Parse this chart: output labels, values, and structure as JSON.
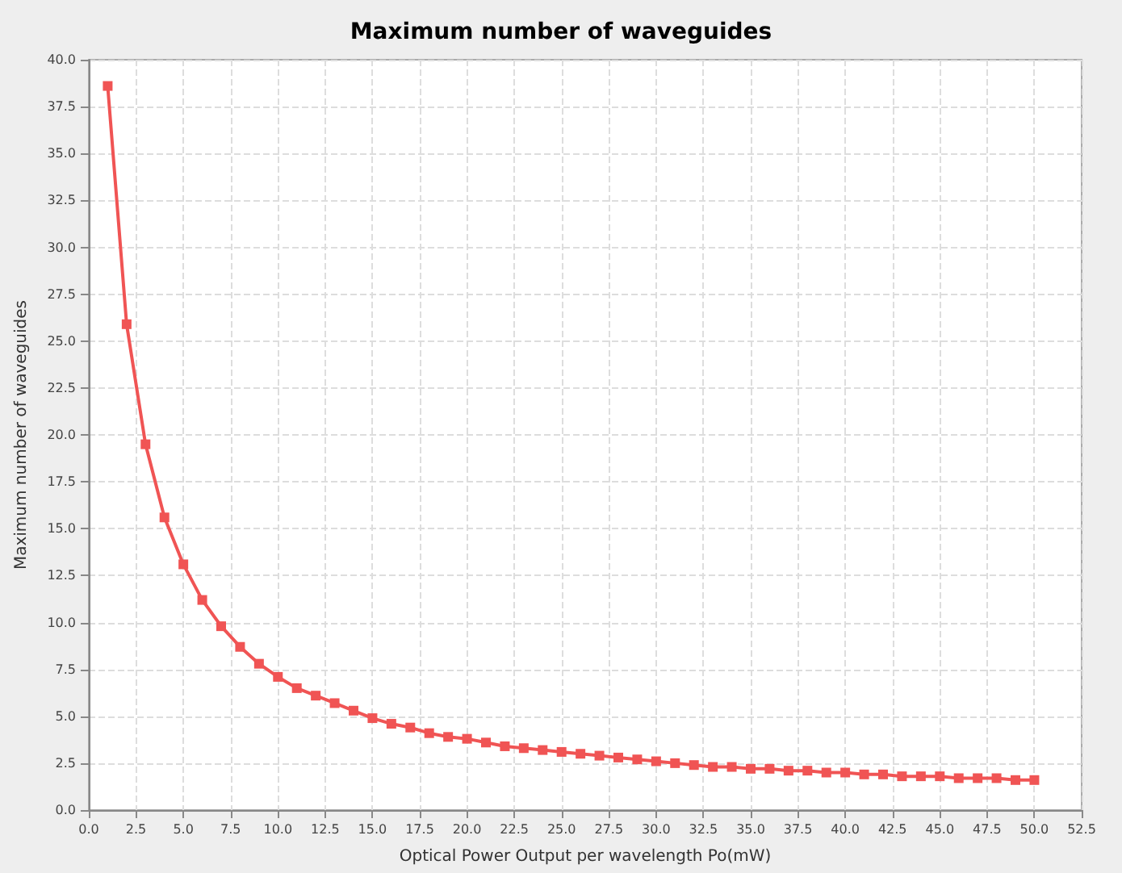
{
  "chart_data": {
    "type": "line",
    "title": "Maximum number of waveguides",
    "xlabel": "Optical Power Output per wavelength Po(mW)",
    "ylabel": "Maximum number of waveguides",
    "x": [
      1,
      2,
      3,
      4,
      5,
      6,
      7,
      8,
      9,
      10,
      11,
      12,
      13,
      14,
      15,
      16,
      17,
      18,
      19,
      20,
      21,
      22,
      23,
      24,
      25,
      26,
      27,
      28,
      29,
      30,
      31,
      32,
      33,
      34,
      35,
      36,
      37,
      38,
      39,
      40,
      41,
      42,
      43,
      44,
      45,
      46,
      47,
      48,
      49,
      50
    ],
    "series": [
      {
        "color": "#f05454",
        "values": [
          38.6,
          25.9,
          19.5,
          15.6,
          13.1,
          11.2,
          9.8,
          8.7,
          7.8,
          7.1,
          6.5,
          6.1,
          5.7,
          5.3,
          4.9,
          4.6,
          4.4,
          4.1,
          3.9,
          3.8,
          3.6,
          3.4,
          3.3,
          3.2,
          3.1,
          3.0,
          2.9,
          2.8,
          2.7,
          2.6,
          2.5,
          2.4,
          2.3,
          2.3,
          2.2,
          2.2,
          2.1,
          2.1,
          2.0,
          2.0,
          1.9,
          1.9,
          1.8,
          1.8,
          1.8,
          1.7,
          1.7,
          1.7,
          1.6,
          1.6
        ]
      }
    ],
    "xlim": [
      0,
      52.5
    ],
    "xticks": [
      {
        "value": 0,
        "label": "0.0"
      },
      {
        "value": 2.5,
        "label": "2.5"
      },
      {
        "value": 5,
        "label": "5.0"
      },
      {
        "value": 7.5,
        "label": "7.5"
      },
      {
        "value": 10,
        "label": "10.0"
      },
      {
        "value": 12.5,
        "label": "12.5"
      },
      {
        "value": 15,
        "label": "15.0"
      },
      {
        "value": 17.5,
        "label": "17.5"
      },
      {
        "value": 20,
        "label": "20.0"
      },
      {
        "value": 22.5,
        "label": "22.5"
      },
      {
        "value": 25,
        "label": "25.0"
      },
      {
        "value": 27.5,
        "label": "27.5"
      },
      {
        "value": 30,
        "label": "30.0"
      },
      {
        "value": 32.5,
        "label": "32.5"
      },
      {
        "value": 35,
        "label": "35.0"
      },
      {
        "value": 37.5,
        "label": "37.5"
      },
      {
        "value": 40,
        "label": "40.0"
      },
      {
        "value": 42.5,
        "label": "42.5"
      },
      {
        "value": 45,
        "label": "45.0"
      },
      {
        "value": 47.5,
        "label": "47.5"
      },
      {
        "value": 50,
        "label": "50.0"
      },
      {
        "value": 52.5,
        "label": "52.5"
      }
    ],
    "ylim": [
      0,
      40
    ],
    "yticks": [
      {
        "value": 0,
        "label": "0.0"
      },
      {
        "value": 2.5,
        "label": "2.5"
      },
      {
        "value": 5,
        "label": "5.0"
      },
      {
        "value": 7.5,
        "label": "7.5"
      },
      {
        "value": 10,
        "label": "10.0"
      },
      {
        "value": 12.5,
        "label": "12.5"
      },
      {
        "value": 15,
        "label": "15.0"
      },
      {
        "value": 17.5,
        "label": "17.5"
      },
      {
        "value": 20,
        "label": "20.0"
      },
      {
        "value": 22.5,
        "label": "22.5"
      },
      {
        "value": 25,
        "label": "25.0"
      },
      {
        "value": 27.5,
        "label": "27.5"
      },
      {
        "value": 30,
        "label": "30.0"
      },
      {
        "value": 32.5,
        "label": "32.5"
      },
      {
        "value": 35,
        "label": "35.0"
      },
      {
        "value": 37.5,
        "label": "37.5"
      },
      {
        "value": 40,
        "label": "40.0"
      }
    ],
    "grid": true,
    "marker": "square",
    "line_style": "solid"
  }
}
